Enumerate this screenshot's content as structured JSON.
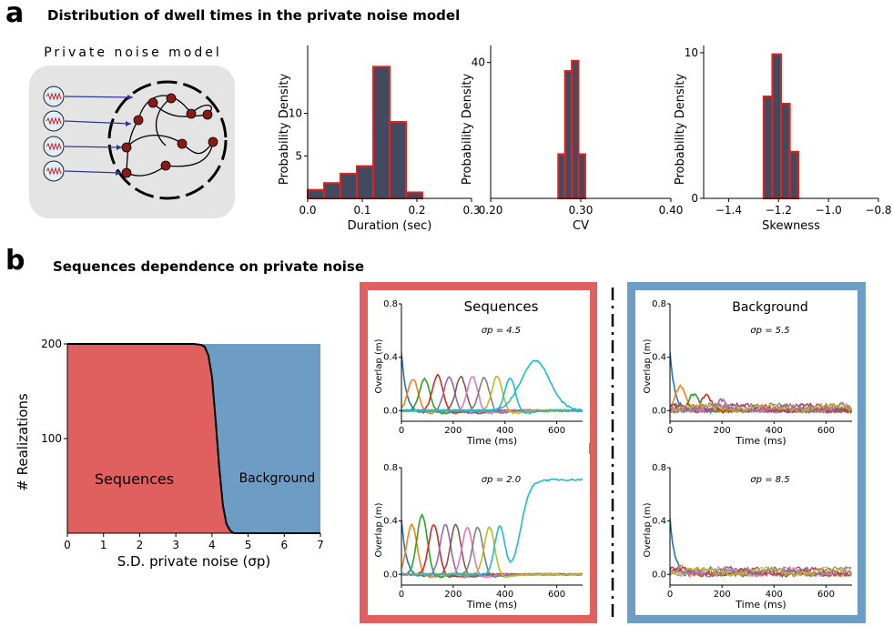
{
  "panel_a": {
    "letter": "a",
    "title": "Distribution of dwell times in the private noise model",
    "schematic_title": "Private noise model"
  },
  "panel_b": {
    "letter": "b",
    "title": "Sequences dependence on private noise"
  },
  "colors": {
    "hist_fill": "#414a5e",
    "hist_edge": "#e8201c",
    "sequences": "#e06060",
    "background": "#6d9dc5",
    "schematic_bg": "#e4e4e4",
    "node": "#8b1a14",
    "arrow": "#2b3a9a"
  },
  "chart_data": [
    {
      "id": "hist_duration",
      "type": "bar",
      "xlabel": "Duration (sec)",
      "ylabel": "Probability Density",
      "xlim": [
        0.0,
        0.3
      ],
      "ylim": [
        0,
        18
      ],
      "xticks": [
        {
          "v": 0.0,
          "t": "0.0"
        },
        {
          "v": 0.1,
          "t": "0.1"
        },
        {
          "v": 0.2,
          "t": "0.2"
        },
        {
          "v": 0.3,
          "t": "0.3"
        }
      ],
      "yticks": [
        {
          "v": 5,
          "t": "5"
        },
        {
          "v": 10,
          "t": "10"
        }
      ],
      "bin_edges": [
        0.0,
        0.03,
        0.06,
        0.09,
        0.12,
        0.15,
        0.18,
        0.21,
        0.24,
        0.27
      ],
      "values": [
        1.0,
        1.8,
        2.9,
        3.8,
        15.5,
        9.0,
        0.7,
        0.0,
        0.0
      ]
    },
    {
      "id": "hist_cv",
      "type": "bar",
      "xlabel": "CV",
      "ylabel": "Probability Density",
      "xlim": [
        0.2,
        0.4
      ],
      "ylim": [
        0,
        45
      ],
      "xticks": [
        {
          "v": 0.2,
          "t": "0.20"
        },
        {
          "v": 0.3,
          "t": "0.30"
        },
        {
          "v": 0.4,
          "t": "0.40"
        }
      ],
      "yticks": [
        {
          "v": 40,
          "t": "40"
        }
      ],
      "bin_edges": [
        0.2,
        0.275,
        0.2825,
        0.29,
        0.2975,
        0.305,
        0.4
      ],
      "values": [
        0.0,
        13.0,
        37.5,
        40.5,
        13.0,
        0.0
      ]
    },
    {
      "id": "hist_skewness",
      "type": "bar",
      "xlabel": "Skewness",
      "ylabel": "Probability Density",
      "xlim": [
        -1.5,
        -0.8
      ],
      "ylim": [
        0,
        10.5
      ],
      "xticks": [
        {
          "v": -1.4,
          "t": "−1.4"
        },
        {
          "v": -1.2,
          "t": "−1.2"
        },
        {
          "v": -1.0,
          "t": "−1.0"
        },
        {
          "v": -0.8,
          "t": "−0.8"
        }
      ],
      "yticks": [
        {
          "v": 0,
          "t": "0"
        },
        {
          "v": 10,
          "t": "10"
        }
      ],
      "bin_edges": [
        -1.45,
        -1.26,
        -1.225,
        -1.19,
        -1.155,
        -1.12,
        -0.88
      ],
      "values": [
        0.0,
        7.0,
        9.9,
        6.5,
        3.2,
        0.0
      ]
    },
    {
      "id": "phase_diagram",
      "type": "area",
      "xlabel": "S.D. private noise (σp)",
      "ylabel": "# Realizations",
      "xlim": [
        0,
        7
      ],
      "ylim": [
        0,
        200
      ],
      "xticks": [
        {
          "v": 0,
          "t": "0"
        },
        {
          "v": 1,
          "t": "1"
        },
        {
          "v": 2,
          "t": "2"
        },
        {
          "v": 3,
          "t": "3"
        },
        {
          "v": 4,
          "t": "4"
        },
        {
          "v": 5,
          "t": "5"
        },
        {
          "v": 6,
          "t": "6"
        },
        {
          "v": 7,
          "t": "7"
        }
      ],
      "yticks": [
        {
          "v": 100,
          "t": "100"
        },
        {
          "v": 200,
          "t": "200"
        }
      ],
      "sequences_label": "Sequences",
      "background_label": "Background",
      "x": [
        0,
        3.5,
        3.7,
        3.8,
        3.9,
        4.0,
        4.1,
        4.2,
        4.3,
        4.4,
        4.5,
        4.6,
        7.0
      ],
      "sequences_count": [
        200,
        200,
        199,
        197,
        188,
        165,
        120,
        70,
        30,
        10,
        3,
        0,
        0
      ]
    },
    {
      "id": "overlap_seq_a",
      "type": "line",
      "group_label": "Sequences",
      "sigma_label": "σp = 4.5",
      "xlabel": "Time (ms)",
      "ylabel": "Overlap (m)",
      "xlim": [
        0,
        700
      ],
      "ylim": [
        -0.08,
        0.8
      ],
      "xticks": [
        {
          "v": 0,
          "t": "0"
        },
        {
          "v": 200,
          "t": "200"
        },
        {
          "v": 400,
          "t": "400"
        },
        {
          "v": 600,
          "t": "600"
        }
      ],
      "yticks": [
        {
          "v": 0.0,
          "t": "0.0"
        },
        {
          "v": 0.4,
          "t": "0.4"
        },
        {
          "v": 0.8,
          "t": "0.8"
        }
      ],
      "peaks": [
        {
          "t": 0,
          "a": 0.44
        },
        {
          "t": 45,
          "a": 0.24
        },
        {
          "t": 90,
          "a": 0.24
        },
        {
          "t": 140,
          "a": 0.27
        },
        {
          "t": 185,
          "a": 0.26
        },
        {
          "t": 230,
          "a": 0.26
        },
        {
          "t": 275,
          "a": 0.26
        },
        {
          "t": 320,
          "a": 0.25
        },
        {
          "t": 370,
          "a": 0.26
        },
        {
          "t": 420,
          "a": 0.25
        },
        {
          "t": 520,
          "a": 0.38
        }
      ]
    },
    {
      "id": "overlap_seq_b",
      "type": "line",
      "sigma_label": "σp = 2.0",
      "xlabel": "Time (ms)",
      "ylabel": "Overlap (m)",
      "xlim": [
        0,
        700
      ],
      "ylim": [
        -0.08,
        0.8
      ],
      "xticks": [
        {
          "v": 0,
          "t": "0"
        },
        {
          "v": 200,
          "t": "200"
        },
        {
          "v": 400,
          "t": "400"
        },
        {
          "v": 600,
          "t": "600"
        }
      ],
      "yticks": [
        {
          "v": 0.0,
          "t": "0.0"
        },
        {
          "v": 0.4,
          "t": "0.4"
        },
        {
          "v": 0.8,
          "t": "0.8"
        }
      ],
      "peaks": [
        {
          "t": 0,
          "a": 0.42
        },
        {
          "t": 40,
          "a": 0.38
        },
        {
          "t": 80,
          "a": 0.45
        },
        {
          "t": 125,
          "a": 0.38
        },
        {
          "t": 170,
          "a": 0.38
        },
        {
          "t": 210,
          "a": 0.38
        },
        {
          "t": 255,
          "a": 0.36
        },
        {
          "t": 295,
          "a": 0.36
        },
        {
          "t": 340,
          "a": 0.36
        },
        {
          "t": 380,
          "a": 0.36
        }
      ],
      "final_level": 0.71
    },
    {
      "id": "overlap_bg_a",
      "type": "line",
      "group_label": "Background",
      "sigma_label": "σp = 5.5",
      "xlabel": "Time (ms)",
      "ylabel": "Overlap (m)",
      "xlim": [
        0,
        700
      ],
      "ylim": [
        -0.08,
        0.8
      ],
      "xticks": [
        {
          "v": 0,
          "t": "0"
        },
        {
          "v": 200,
          "t": "200"
        },
        {
          "v": 400,
          "t": "400"
        },
        {
          "v": 600,
          "t": "600"
        }
      ],
      "yticks": [
        {
          "v": 0.0,
          "t": "0.0"
        },
        {
          "v": 0.4,
          "t": "0.4"
        },
        {
          "v": 0.8,
          "t": "0.8"
        }
      ],
      "peaks": [
        {
          "t": 0,
          "a": 0.44
        },
        {
          "t": 40,
          "a": 0.18
        },
        {
          "t": 90,
          "a": 0.12
        },
        {
          "t": 140,
          "a": 0.11
        },
        {
          "t": 200,
          "a": 0.08
        }
      ]
    },
    {
      "id": "overlap_bg_b",
      "type": "line",
      "sigma_label": "σp = 8.5",
      "xlabel": "Time (ms)",
      "ylabel": "Overlap (m)",
      "xlim": [
        0,
        700
      ],
      "ylim": [
        -0.08,
        0.8
      ],
      "xticks": [
        {
          "v": 0,
          "t": "0"
        },
        {
          "v": 200,
          "t": "200"
        },
        {
          "v": 400,
          "t": "400"
        },
        {
          "v": 600,
          "t": "600"
        }
      ],
      "yticks": [
        {
          "v": 0.0,
          "t": "0.0"
        },
        {
          "v": 0.4,
          "t": "0.4"
        },
        {
          "v": 0.8,
          "t": "0.8"
        }
      ],
      "peaks": [
        {
          "t": 0,
          "a": 0.42
        },
        {
          "t": 40,
          "a": 0.06
        }
      ]
    }
  ]
}
